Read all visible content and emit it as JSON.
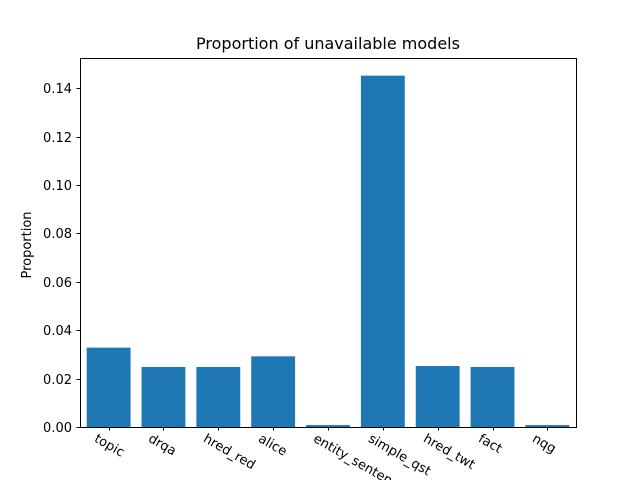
{
  "chart_data": {
    "type": "bar",
    "title": "Proportion of unavailable models",
    "xlabel": "",
    "ylabel": "Proportion",
    "categories": [
      "topic",
      "drqa",
      "hred_red",
      "alice",
      "entity_sentence",
      "simple_qst",
      "hred_twt",
      "fact",
      "nqg"
    ],
    "values": [
      0.0328,
      0.0248,
      0.0248,
      0.0292,
      0.0008,
      0.1452,
      0.0252,
      0.0248,
      0.0008
    ],
    "ylim": [
      0,
      0.1525
    ],
    "yticks": [
      "0.00",
      "0.02",
      "0.04",
      "0.06",
      "0.08",
      "0.10",
      "0.12",
      "0.14"
    ],
    "ytick_values": [
      0,
      0.02,
      0.04,
      0.06,
      0.08,
      0.1,
      0.12,
      0.14
    ],
    "bar_color": "#1f77b4",
    "grid": false,
    "legend": "none"
  }
}
